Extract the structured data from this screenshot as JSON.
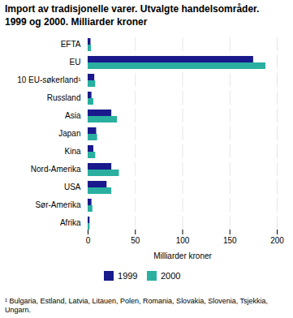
{
  "chart_data": {
    "type": "bar",
    "orientation": "horizontal",
    "title": "Import av tradisjonelle varer. Utvalgte handelsområder.\n1999 og 2000. Milliarder kroner",
    "categories": [
      "EFTA",
      "EU",
      "10 EU-søkerland¹",
      "Russland",
      "Asia",
      "Japan",
      "Kina",
      "Nord-Amerika",
      "USA",
      "Sør-Amerika",
      "Afrika"
    ],
    "series": [
      {
        "name": "1999",
        "color": "#1a1a8c",
        "values": [
          3,
          175,
          7,
          4,
          25,
          9,
          6,
          25,
          20,
          4,
          2
        ]
      },
      {
        "name": "2000",
        "color": "#2aafa0",
        "values": [
          3.5,
          188,
          8,
          6,
          31,
          10,
          8,
          33,
          25,
          5,
          2
        ]
      }
    ],
    "xlabel": "Milliarder kroner",
    "xlim": [
      0,
      200
    ],
    "xticks": [
      0,
      50,
      100,
      150,
      200
    ],
    "grid": true,
    "legend": "bottom",
    "footnote": "¹ Bulgaria, Estland, Latvia, Litauen, Polen, Romania, Slovakia, Slovenia, Tsjekkia,\nUngarn."
  }
}
